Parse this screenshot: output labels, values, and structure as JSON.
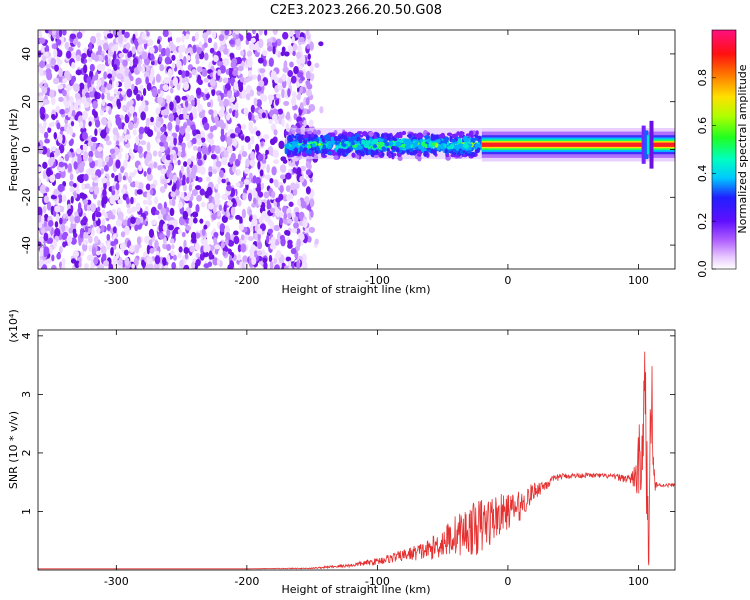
{
  "title": "C2E3.2023.266.20.50.G08",
  "colors": {
    "snr_line": "#e53030",
    "spectrogram_noise": "#8a2be2",
    "spectrogram_signal_core": "#ff2020"
  },
  "chart_data": [
    {
      "type": "heatmap",
      "xlabel": "Height of straight line (km)",
      "ylabel": "Frequency (Hz)",
      "xlim": [
        -360,
        128
      ],
      "ylim": [
        -50,
        50
      ],
      "x_ticks": [
        -300,
        -200,
        -100,
        0,
        100
      ],
      "y_ticks": [
        -40,
        -20,
        0,
        20,
        40
      ],
      "colorbar": {
        "label": "Normalized spectral amplitude",
        "range": [
          0,
          1
        ],
        "ticks": [
          0.0,
          0.2,
          0.4,
          0.6,
          0.8
        ],
        "tick_labels": [
          "0.0",
          "0.2",
          "0.4",
          "0.6",
          "0.8"
        ],
        "colormap": "rainbow (white-purple-blue-cyan-green-yellow-red-magenta)"
      },
      "regions": [
        {
          "name": "noise",
          "x_range": [
            -360,
            -150
          ],
          "freq_range": [
            -50,
            50
          ],
          "amplitude": "0.0-0.25"
        },
        {
          "name": "signal-transition",
          "x_range": [
            -170,
            -20
          ],
          "center_freq": 2,
          "width_hz": 12,
          "amplitude": "0.2-0.6"
        },
        {
          "name": "signal-steady",
          "x_range": [
            -20,
            128
          ],
          "center_freq": 2,
          "width_hz": 6,
          "amplitude": "0.6-1.0"
        }
      ]
    },
    {
      "type": "line",
      "xlabel": "Height of straight line (km)",
      "ylabel": "SNR (10 * v/v)",
      "y_multiplier": "(x10⁴)",
      "xlim": [
        -360,
        128
      ],
      "ylim": [
        0,
        4.1
      ],
      "x_ticks": [
        -300,
        -200,
        -100,
        0,
        100
      ],
      "y_ticks": [
        1,
        2,
        3,
        4
      ],
      "series": [
        {
          "x": [
            -360,
            -300,
            -200,
            -150,
            -120,
            -100,
            -80,
            -60,
            -40,
            -20,
            -10,
            0,
            10,
            20,
            40,
            60,
            80,
            95,
            100,
            105,
            108,
            110,
            112,
            115,
            120,
            128
          ],
          "y": [
            0.02,
            0.02,
            0.02,
            0.03,
            0.08,
            0.15,
            0.25,
            0.35,
            0.6,
            0.75,
            0.9,
            1.0,
            1.1,
            1.35,
            1.6,
            1.62,
            1.6,
            1.55,
            1.7,
            2.8,
            0.2,
            4.0,
            1.5,
            1.45,
            1.45,
            1.45
          ],
          "noise_amplitude": [
            0,
            0,
            0,
            0.01,
            0.03,
            0.06,
            0.1,
            0.18,
            0.35,
            0.5,
            0.4,
            0.3,
            0.25,
            0.15,
            0.05,
            0.04,
            0.04,
            0.1,
            0.6,
            1.2,
            0.5,
            1.5,
            0.3,
            0.03,
            0.03,
            0.03
          ]
        }
      ]
    }
  ]
}
